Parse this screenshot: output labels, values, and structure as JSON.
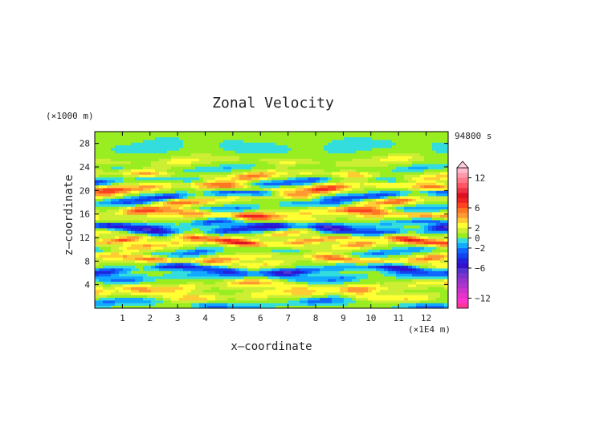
{
  "chart_data": {
    "type": "heatmap",
    "title": "Zonal Velocity",
    "xlabel": "x—coordinate",
    "ylabel": "z—coordinate",
    "x_unit": "(×1E4 m)",
    "y_unit": "(×1000 m)",
    "time_label": "94800 s",
    "xlim": [
      0,
      12.8
    ],
    "ylim": [
      0,
      30
    ],
    "x_ticks": [
      "1",
      "2",
      "3",
      "4",
      "5",
      "6",
      "7",
      "8",
      "9",
      "10",
      "11",
      "12"
    ],
    "y_ticks": [
      "4",
      "8",
      "12",
      "16",
      "20",
      "24",
      "28"
    ],
    "legend_position": "right",
    "colorbar": {
      "levels": [
        -14,
        -13,
        -12,
        -11,
        -10,
        -9,
        -8,
        -7,
        -6,
        -5,
        -4,
        -3,
        -2,
        -1,
        0,
        1,
        2,
        3,
        4,
        5,
        6,
        7,
        8,
        9,
        10,
        11,
        12,
        13,
        14
      ],
      "colors": [
        "#ff3399",
        "#ff33cc",
        "#e633cc",
        "#cc33cc",
        "#b033cc",
        "#9933cc",
        "#7a33cc",
        "#5533cc",
        "#3311cc",
        "#2222dd",
        "#1144ee",
        "#1166ff",
        "#11aaff",
        "#33dddd",
        "#99ee22",
        "#ccee33",
        "#ffff33",
        "#ffcc33",
        "#ff9933",
        "#ff7722",
        "#ff4422",
        "#ee2222",
        "#dd1122",
        "#ee3344",
        "#ff5566",
        "#ff7788",
        "#ff99aa",
        "#ffbbcc"
      ],
      "tick_labels": [
        "12",
        "6",
        "2",
        "0",
        "−2",
        "−6",
        "−12"
      ],
      "tick_values": [
        12,
        6,
        2,
        0,
        -2,
        -6,
        -12
      ]
    },
    "field_model": "zonal velocity bands (m/s) by height, with along-x undulation",
    "bands": [
      {
        "z": 0.8,
        "amp": -2.5,
        "width": 0.7
      },
      {
        "z": 2.2,
        "amp": 2.5,
        "width": 0.8
      },
      {
        "z": 3.8,
        "amp": 3.0,
        "width": 0.7
      },
      {
        "z": 5.4,
        "amp": -2.5,
        "width": 0.7
      },
      {
        "z": 6.6,
        "amp": -5.0,
        "width": 0.6
      },
      {
        "z": 7.8,
        "amp": 2.0,
        "width": 0.6
      },
      {
        "z": 8.6,
        "amp": 3.5,
        "width": 0.6
      },
      {
        "z": 9.6,
        "amp": -2.5,
        "width": 0.6
      },
      {
        "z": 10.8,
        "amp": 3.0,
        "width": 0.7
      },
      {
        "z": 11.6,
        "amp": 4.0,
        "width": 0.5
      },
      {
        "z": 12.6,
        "amp": 2.5,
        "width": 0.6
      },
      {
        "z": 13.4,
        "amp": -5.5,
        "width": 0.7
      },
      {
        "z": 14.4,
        "amp": -3.0,
        "width": 0.6
      },
      {
        "z": 15.4,
        "amp": 2.0,
        "width": 0.6
      },
      {
        "z": 16.2,
        "amp": 5.0,
        "width": 0.7
      },
      {
        "z": 17.4,
        "amp": -2.5,
        "width": 0.6
      },
      {
        "z": 18.6,
        "amp": 4.0,
        "width": 0.6
      },
      {
        "z": 19.2,
        "amp": -4.5,
        "width": 0.6
      },
      {
        "z": 20.6,
        "amp": 5.0,
        "width": 0.7
      },
      {
        "z": 21.6,
        "amp": -3.5,
        "width": 0.6
      },
      {
        "z": 22.6,
        "amp": 3.5,
        "width": 0.7
      },
      {
        "z": 23.8,
        "amp": -1.5,
        "width": 0.6
      },
      {
        "z": 25.0,
        "amp": 1.5,
        "width": 0.8
      },
      {
        "z": 27.4,
        "amp": -1.0,
        "width": 1.5
      }
    ]
  }
}
